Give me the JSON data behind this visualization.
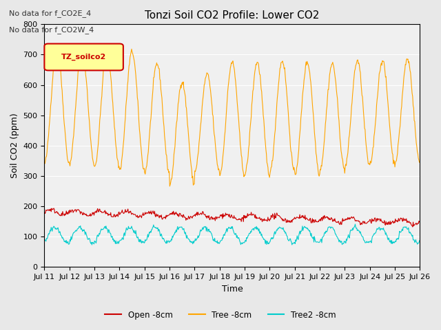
{
  "title": "Tonzi Soil CO2 Profile: Lower CO2",
  "xlabel": "Time",
  "ylabel": "Soil CO2 (ppm)",
  "ylim": [
    0,
    800
  ],
  "yticks": [
    0,
    100,
    200,
    300,
    400,
    500,
    600,
    700,
    800
  ],
  "bg_color": "#e8e8e8",
  "plot_bg_color": "#f0f0f0",
  "annotations": [
    "No data for f_CO2E_4",
    "No data for f_CO2W_4"
  ],
  "legend_label": "TZ_soilco2",
  "series_labels": [
    "Open -8cm",
    "Tree -8cm",
    "Tree2 -8cm"
  ],
  "series_colors": [
    "#cc0000",
    "#ffa500",
    "#00cccc"
  ],
  "xtick_labels": [
    "Jul 11",
    "Jul 12",
    "Jul 13",
    "Jul 14",
    "Jul 15",
    "Jul 16",
    "Jul 17",
    "Jul 18",
    "Jul 19",
    "Jul 20",
    "Jul 21",
    "Jul 22",
    "Jul 23",
    "Jul 24",
    "Jul 25",
    "Jul 26"
  ],
  "n_days": 15,
  "pts_per_day": 48
}
